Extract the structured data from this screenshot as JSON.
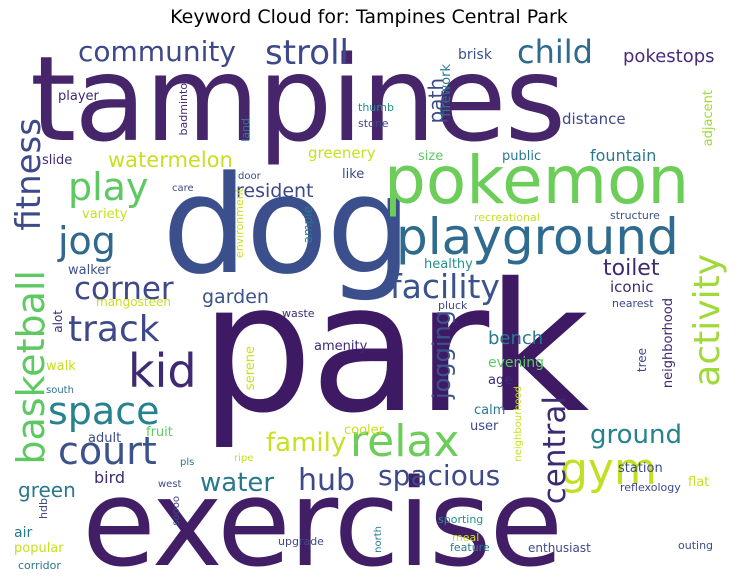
{
  "title": "Keyword Cloud for: Tampines Central Park",
  "words": {
    "tampines": "tampines",
    "park": "park",
    "exercise": "exercise",
    "dog": "dog",
    "pokemon": "pokemon",
    "playground": "playground",
    "community": "community",
    "stroll": "stroll",
    "child": "child",
    "pokestops": "pokestops",
    "brisk": "brisk",
    "player": "player",
    "distance": "distance",
    "adjacent": "adjacent",
    "watermelon": "watermelon",
    "play": "play",
    "resident": "resident",
    "jog": "jog",
    "fitness": "fitness",
    "basketball": "basketball",
    "corner": "corner",
    "garden": "garden",
    "facility": "facility",
    "track": "track",
    "kid": "kid",
    "space": "space",
    "court": "court",
    "relax": "relax",
    "gym": "gym",
    "family": "family",
    "water": "water",
    "hub": "hub",
    "spacious": "spacious",
    "central": "central",
    "jogging": "jogging",
    "activity": "activity",
    "ground": "ground",
    "green": "green",
    "bird": "bird",
    "toilet": "toilet",
    "iconic": "iconic",
    "bench": "bench",
    "evening": "evening",
    "age": "age",
    "calm": "calm",
    "user": "user",
    "station": "station",
    "flat": "flat",
    "reflexology": "reflexology",
    "outing": "outing",
    "enthusiast": "enthusiast",
    "feature": "feature",
    "meal": "meal",
    "sporting": "sporting",
    "upgrade": "upgrade",
    "popular": "popular",
    "air": "air",
    "hdb": "hdb",
    "corridor": "corridor",
    "soooo": "soooo",
    "west": "west",
    "north": "north",
    "ripe": "ripe",
    "pls": "pls",
    "adult": "adult",
    "fruit": "fruit",
    "cooler": "cooler",
    "neighbourhood": "neighbourhood",
    "neighborhood": "neighborhood",
    "tree": "tree",
    "nearest": "nearest",
    "pluck": "pluck",
    "waste": "waste",
    "amenity": "amenity",
    "serene": "serene",
    "alot": "alot",
    "walk": "walk",
    "south": "south",
    "mangosteen": "mangosteen",
    "walker": "walker",
    "variety": "variety",
    "care": "care",
    "slide": "slide",
    "badminton": "badminton",
    "thumb": "thumb",
    "stone": "stone",
    "land": "land",
    "firework": "firework",
    "door": "door",
    "environment": "environment",
    "ample": "ample",
    "like": "like",
    "greenery": "greenery",
    "size": "size",
    "public": "public",
    "fountain": "fountain",
    "healthy": "healthy",
    "recreational": "recreational",
    "structure": "structure",
    "path": "path"
  }
}
